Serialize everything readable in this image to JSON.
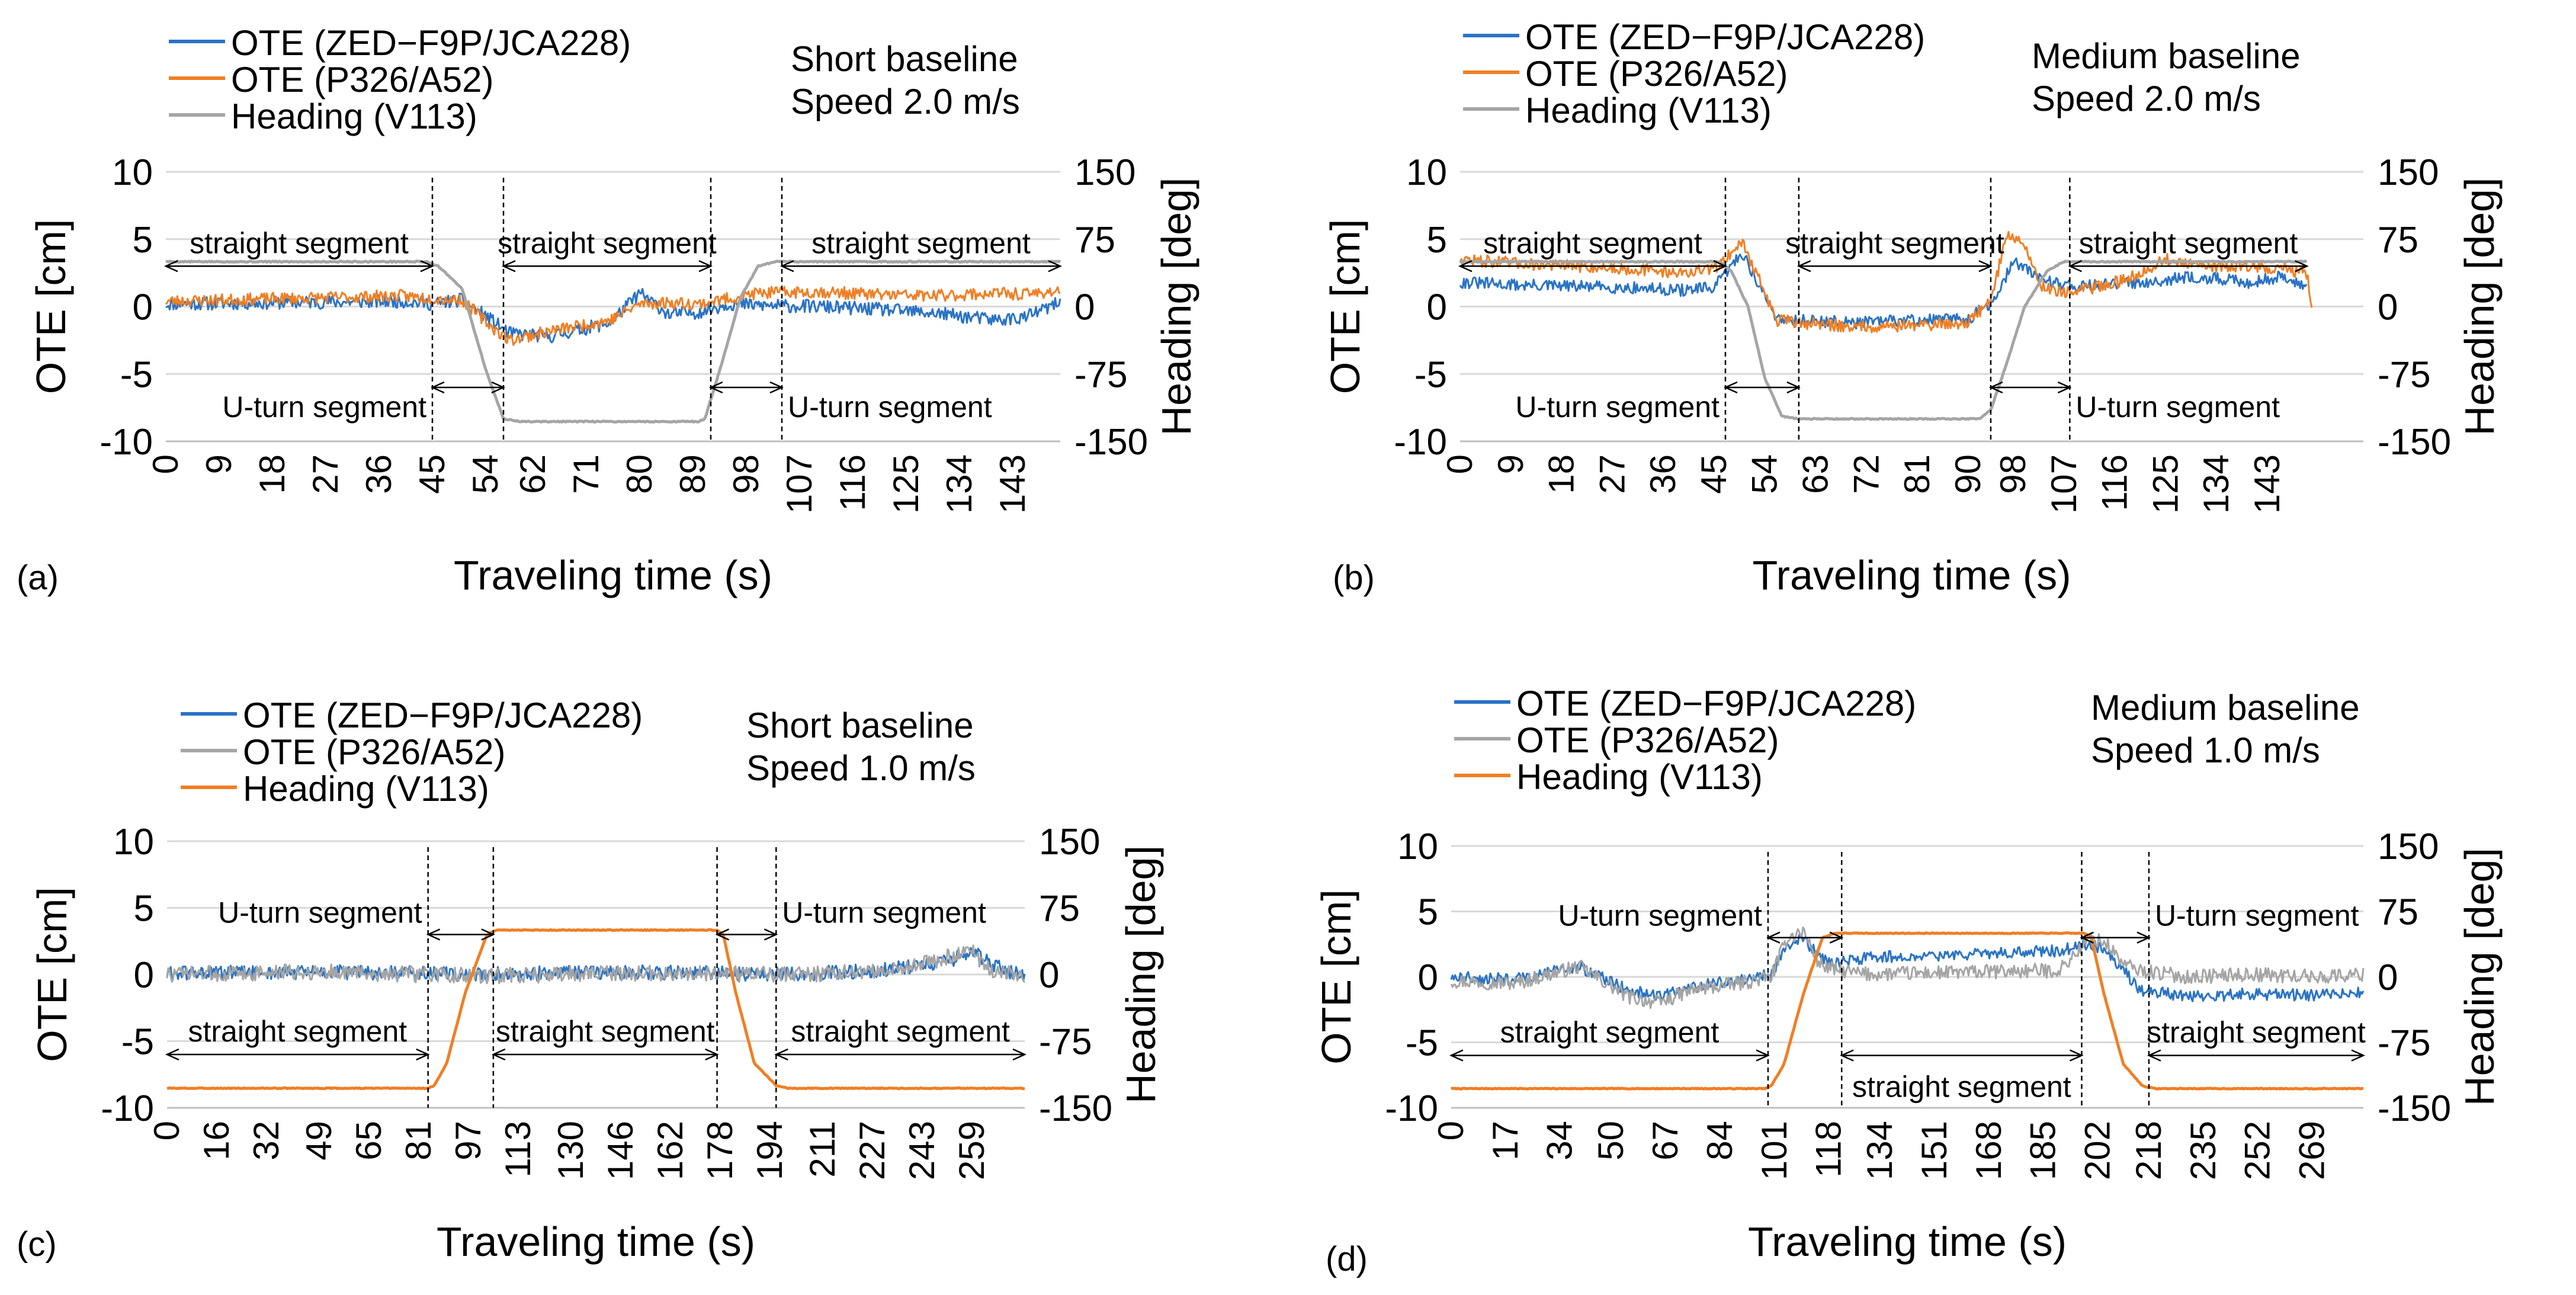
{
  "colors": {
    "blue": "#2a73c5",
    "orange": "#f07f24",
    "gray": "#a5a5a5",
    "grid": "#d9d9d9",
    "axis": "#bfbfbf"
  },
  "chart_data": [
    {
      "id": "a",
      "type": "line",
      "panel_label": "(a)",
      "xlabel": "Traveling time (s)",
      "ylabel": "OTE [cm]",
      "y2label": "Heading [deg]",
      "ylim": [
        -10,
        10
      ],
      "y2lim": [
        -150,
        150
      ],
      "yticks": [
        "10",
        "5",
        "0",
        "-5",
        "-10"
      ],
      "y2ticks": [
        "150",
        "75",
        "0",
        "-75",
        "-150"
      ],
      "xticks": [
        "0",
        "9",
        "18",
        "27",
        "36",
        "45",
        "54",
        "62",
        "71",
        "80",
        "89",
        "98",
        "107",
        "116",
        "125",
        "134",
        "143"
      ],
      "xmax": 151,
      "info_lines": [
        "Short baseline",
        "Speed 2.0 m/s"
      ],
      "legend": [
        {
          "label": "OTE (ZED−F9P/JCA228)",
          "color": "#2a73c5"
        },
        {
          "label": "OTE (P326/A52)",
          "color": "#f07f24"
        },
        {
          "label": "Heading (V113)",
          "color": "#a5a5a5"
        }
      ],
      "series": [
        {
          "name": "OTE (ZED-F9P/JCA228)",
          "axis": "left",
          "color": "#2a73c5",
          "noise": 0.5,
          "seed": 11,
          "x": [
            0,
            20,
            40,
            45,
            50,
            55,
            58,
            65,
            75,
            80,
            85,
            90,
            95,
            100,
            110,
            120,
            130,
            140,
            145,
            151
          ],
          "y": [
            0.2,
            0.3,
            0.4,
            0.2,
            0.5,
            -1.0,
            -2.0,
            -2.2,
            -1.2,
            1.0,
            -0.6,
            -0.4,
            0.2,
            0.1,
            0.0,
            -0.2,
            -0.5,
            -1.0,
            -0.8,
            0.3
          ]
        },
        {
          "name": "OTE (P326/A52)",
          "axis": "left",
          "color": "#f07f24",
          "noise": 0.45,
          "seed": 23,
          "x": [
            0,
            20,
            40,
            45,
            50,
            55,
            58,
            65,
            75,
            80,
            85,
            90,
            95,
            100,
            110,
            120,
            130,
            140,
            145,
            151
          ],
          "y": [
            0.4,
            0.6,
            0.8,
            0.6,
            0.5,
            -1.5,
            -2.5,
            -1.8,
            -1.0,
            0.2,
            0.3,
            0.2,
            0.6,
            1.0,
            1.1,
            0.9,
            0.8,
            1.0,
            0.9,
            1.2
          ]
        },
        {
          "name": "Heading (V113)",
          "axis": "right",
          "color": "#a5a5a5",
          "noise": 0.4,
          "seed": 5,
          "x": [
            0,
            44,
            46,
            50,
            54,
            57,
            60,
            90,
            91,
            94,
            97,
            100,
            103,
            151
          ],
          "y": [
            50,
            50,
            45,
            20,
            -70,
            -125,
            -128,
            -128,
            -125,
            -60,
            10,
            45,
            50,
            50
          ]
        }
      ],
      "segments": [
        {
          "label": "straight segment",
          "from": 0,
          "to": 45,
          "pos": "upper"
        },
        {
          "label": "straight segment",
          "from": 57,
          "to": 92,
          "pos": "upper"
        },
        {
          "label": "straight segment",
          "from": 104,
          "to": 151,
          "pos": "upper"
        },
        {
          "label": "U-turn segment",
          "from": 45,
          "to": 57,
          "pos": "lower",
          "text_side": "left"
        },
        {
          "label": "U-turn segment",
          "from": 92,
          "to": 104,
          "pos": "lower",
          "text_side": "right"
        }
      ],
      "vlines": [
        45,
        57,
        92,
        104
      ]
    },
    {
      "id": "b",
      "type": "line",
      "panel_label": "(b)",
      "xlabel": "Traveling time (s)",
      "ylabel": "OTE [cm]",
      "y2label": "Heading [deg]",
      "ylim": [
        -10,
        10
      ],
      "y2lim": [
        -150,
        150
      ],
      "yticks": [
        "10",
        "5",
        "0",
        "-5",
        "-10"
      ],
      "y2ticks": [
        "150",
        "75",
        "0",
        "-75",
        "-150"
      ],
      "xticks": [
        "0",
        "9",
        "18",
        "27",
        "36",
        "45",
        "54",
        "63",
        "72",
        "81",
        "90",
        "98",
        "107",
        "116",
        "125",
        "134",
        "143"
      ],
      "xmax": 160,
      "info_lines": [
        "Medium baseline",
        "Speed 2.0 m/s"
      ],
      "legend": [
        {
          "label": "OTE (ZED−F9P/JCA228)",
          "color": "#2a73c5"
        },
        {
          "label": "OTE (P326/A52)",
          "color": "#f07f24"
        },
        {
          "label": "Heading (V113)",
          "color": "#a5a5a5"
        }
      ],
      "series": [
        {
          "name": "OTE (ZED-F9P/JCA228)",
          "axis": "left",
          "color": "#2a73c5",
          "noise": 0.45,
          "seed": 31,
          "x": [
            0,
            10,
            20,
            30,
            40,
            45,
            48,
            50,
            53,
            56,
            60,
            70,
            80,
            90,
            95,
            98,
            101,
            105,
            110,
            120,
            130,
            140,
            145,
            150
          ],
          "y": [
            1.8,
            1.6,
            1.5,
            1.4,
            1.2,
            1.4,
            3.0,
            4.0,
            1.5,
            -0.8,
            -1.0,
            -1.2,
            -1.0,
            -0.9,
            0.5,
            3.5,
            2.5,
            1.8,
            1.5,
            1.8,
            2.2,
            1.8,
            2.2,
            1.5
          ]
        },
        {
          "name": "OTE (P326/A52)",
          "axis": "left",
          "color": "#f07f24",
          "noise": 0.45,
          "seed": 47,
          "x": [
            0,
            10,
            20,
            30,
            40,
            45,
            48,
            50,
            53,
            56,
            60,
            70,
            80,
            90,
            94,
            97,
            100,
            103,
            108,
            118,
            125,
            130,
            140,
            145,
            150,
            151
          ],
          "y": [
            3.5,
            3.2,
            3.0,
            2.8,
            2.5,
            2.8,
            4.0,
            4.8,
            2.0,
            -1.0,
            -1.2,
            -1.5,
            -1.4,
            -1.2,
            0.5,
            5.5,
            4.5,
            1.5,
            1.0,
            2.0,
            3.5,
            3.0,
            3.0,
            2.8,
            2.5,
            -1.0
          ]
        },
        {
          "name": "Heading (V113)",
          "axis": "right",
          "color": "#a5a5a5",
          "noise": 0.4,
          "seed": 9,
          "x": [
            0,
            46,
            48,
            51,
            54,
            57,
            60,
            92,
            94,
            97,
            100,
            104,
            107,
            150
          ],
          "y": [
            50,
            50,
            40,
            0,
            -80,
            -122,
            -125,
            -125,
            -115,
            -60,
            0,
            40,
            50,
            50
          ]
        }
      ],
      "segments": [
        {
          "label": "straight segment",
          "from": 0,
          "to": 47,
          "pos": "upper"
        },
        {
          "label": "straight segment",
          "from": 60,
          "to": 94,
          "pos": "upper"
        },
        {
          "label": "straight segment",
          "from": 108,
          "to": 150,
          "pos": "upper"
        },
        {
          "label": "U-turn segment",
          "from": 47,
          "to": 60,
          "pos": "lower",
          "text_side": "left"
        },
        {
          "label": "U-turn segment",
          "from": 94,
          "to": 108,
          "pos": "lower",
          "text_side": "right"
        }
      ],
      "vlines": [
        47,
        60,
        94,
        108
      ]
    },
    {
      "id": "c",
      "type": "line",
      "panel_label": "(c)",
      "xlabel": "Traveling time (s)",
      "ylabel": "OTE [cm]",
      "y2label": "Heading [deg]",
      "ylim": [
        -10,
        10
      ],
      "y2lim": [
        -150,
        150
      ],
      "yticks": [
        "10",
        "5",
        "0",
        "-5",
        "-10"
      ],
      "y2ticks": [
        "150",
        "75",
        "0",
        "-75",
        "-150"
      ],
      "xticks": [
        "0",
        "16",
        "32",
        "49",
        "65",
        "81",
        "97",
        "113",
        "130",
        "146",
        "162",
        "178",
        "194",
        "211",
        "227",
        "243",
        "259"
      ],
      "xmax": 276,
      "info_lines": [
        "Short baseline",
        "Speed 1.0 m/s"
      ],
      "legend": [
        {
          "label": "OTE (ZED−F9P/JCA228)",
          "color": "#2a73c5"
        },
        {
          "label": "OTE (P326/A52)",
          "color": "#a5a5a5"
        },
        {
          "label": "Heading (V113)",
          "color": "#f07f24"
        }
      ],
      "series": [
        {
          "name": "OTE (ZED-F9P/JCA228)",
          "axis": "left",
          "color": "#2a73c5",
          "noise": 0.55,
          "seed": 61,
          "x": [
            0,
            50,
            100,
            150,
            200,
            230,
            250,
            260,
            270,
            276
          ],
          "y": [
            0.1,
            0.2,
            0.0,
            0.2,
            0.0,
            0.3,
            1.0,
            1.6,
            0.2,
            0.0
          ]
        },
        {
          "name": "OTE (P326/A52)",
          "axis": "left",
          "color": "#a5a5a5",
          "noise": 0.6,
          "seed": 73,
          "x": [
            0,
            50,
            100,
            150,
            200,
            230,
            250,
            258,
            265,
            276
          ],
          "y": [
            0.0,
            0.2,
            -0.1,
            0.1,
            0.0,
            0.2,
            1.2,
            2.0,
            0.3,
            0.0
          ]
        },
        {
          "name": "Heading (V113)",
          "axis": "right",
          "color": "#f07f24",
          "noise": 0.3,
          "seed": 3,
          "x": [
            0,
            84,
            86,
            90,
            96,
            103,
            106,
            177,
            179,
            183,
            189,
            196,
            200,
            276
          ],
          "y": [
            -128,
            -128,
            -125,
            -100,
            -20,
            45,
            50,
            50,
            45,
            -20,
            -100,
            -125,
            -128,
            -128
          ]
        }
      ],
      "segments": [
        {
          "label": "U-turn segment",
          "from": 84,
          "to": 105,
          "pos": "upper",
          "text_side": "left"
        },
        {
          "label": "U-turn segment",
          "from": 177,
          "to": 196,
          "pos": "upper",
          "text_side": "right"
        },
        {
          "label": "straight segment",
          "from": 0,
          "to": 84,
          "pos": "lower"
        },
        {
          "label": "straight segment",
          "from": 105,
          "to": 177,
          "pos": "lower"
        },
        {
          "label": "straight segment",
          "from": 196,
          "to": 276,
          "pos": "lower"
        }
      ],
      "vlines": [
        84,
        105,
        177,
        196
      ]
    },
    {
      "id": "d",
      "type": "line",
      "panel_label": "(d)",
      "xlabel": "Traveling time (s)",
      "ylabel": "OTE [cm]",
      "y2label": "Heading [deg]",
      "ylim": [
        -10,
        10
      ],
      "y2lim": [
        -150,
        150
      ],
      "yticks": [
        "10",
        "5",
        "0",
        "-5",
        "-10"
      ],
      "y2ticks": [
        "150",
        "75",
        "0",
        "-75",
        "-150"
      ],
      "xticks": [
        "0",
        "17",
        "34",
        "50",
        "67",
        "84",
        "101",
        "118",
        "134",
        "151",
        "168",
        "185",
        "202",
        "218",
        "235",
        "252",
        "269"
      ],
      "xmax": 285,
      "info_lines": [
        "Medium baseline",
        "Speed 1.0 m/s"
      ],
      "legend": [
        {
          "label": "OTE (ZED−F9P/JCA228)",
          "color": "#2a73c5"
        },
        {
          "label": "OTE (P326/A52)",
          "color": "#a5a5a5"
        },
        {
          "label": "Heading (V113)",
          "color": "#f07f24"
        }
      ],
      "series": [
        {
          "name": "OTE (ZED-F9P/JCA228)",
          "axis": "left",
          "color": "#2a73c5",
          "noise": 0.45,
          "seed": 81,
          "x": [
            0,
            20,
            40,
            55,
            65,
            75,
            90,
            100,
            105,
            110,
            115,
            120,
            130,
            150,
            170,
            190,
            200,
            205,
            210,
            215,
            230,
            250,
            270,
            285
          ],
          "y": [
            0,
            -0.2,
            0.8,
            -1.0,
            -1.5,
            -0.8,
            -0.2,
            0.2,
            2.5,
            3.0,
            1.5,
            1.0,
            1.5,
            1.6,
            1.8,
            2.0,
            2.5,
            2.0,
            0.5,
            -1.0,
            -1.5,
            -1.3,
            -1.4,
            -1.2
          ]
        },
        {
          "name": "OTE (P326/A52)",
          "axis": "left",
          "color": "#a5a5a5",
          "noise": 0.55,
          "seed": 97,
          "x": [
            0,
            20,
            40,
            55,
            65,
            75,
            90,
            100,
            105,
            110,
            115,
            120,
            130,
            150,
            170,
            190,
            200,
            205,
            210,
            215,
            230,
            250,
            270,
            285
          ],
          "y": [
            -0.3,
            -0.5,
            0.8,
            -1.5,
            -2.0,
            -1.0,
            -0.5,
            0.0,
            3.0,
            3.5,
            1.0,
            0.5,
            0.2,
            0.3,
            0.4,
            0.5,
            3.0,
            2.5,
            1.0,
            0.5,
            0.0,
            0.2,
            0.0,
            0.2
          ]
        },
        {
          "name": "Heading (V113)",
          "axis": "right",
          "color": "#f07f24",
          "noise": 0.3,
          "seed": 7,
          "x": [
            0,
            98,
            100,
            104,
            110,
            116,
            120,
            198,
            200,
            204,
            210,
            216,
            220,
            285
          ],
          "y": [
            -128,
            -128,
            -125,
            -100,
            -20,
            45,
            50,
            50,
            45,
            -20,
            -100,
            -125,
            -128,
            -128
          ]
        }
      ],
      "segments": [
        {
          "label": "U-turn segment",
          "from": 99,
          "to": 122,
          "pos": "upper",
          "text_side": "left"
        },
        {
          "label": "U-turn segment",
          "from": 197,
          "to": 218,
          "pos": "upper",
          "text_side": "right"
        },
        {
          "label": "straight segment",
          "from": 0,
          "to": 99,
          "pos": "lower"
        },
        {
          "label": "straight segment",
          "from": 122,
          "to": 197,
          "pos": "lower",
          "text_below": true
        },
        {
          "label": "straight segment",
          "from": 218,
          "to": 285,
          "pos": "lower"
        }
      ],
      "vlines": [
        99,
        122,
        197,
        218
      ]
    }
  ]
}
